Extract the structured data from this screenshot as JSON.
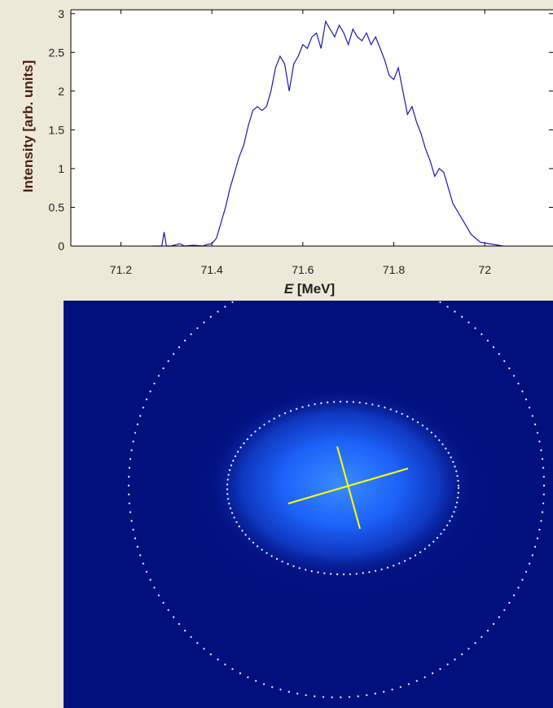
{
  "chart_data": [
    {
      "type": "line",
      "title": "",
      "xlabel_italic": "E",
      "xlabel_rest": " [MeV]",
      "ylabel": "Intensity [arb. units]",
      "xlim": [
        71.09,
        72.15
      ],
      "ylim": [
        0,
        3.05
      ],
      "xticks": [
        71.2,
        71.4,
        71.6,
        71.8,
        72
      ],
      "xtick_labels": [
        "71.2",
        "71.4",
        "71.6",
        "71.8",
        "72"
      ],
      "yticks": [
        0,
        0.5,
        1,
        1.5,
        2,
        2.5,
        3
      ],
      "ytick_labels": [
        "0",
        "0.5",
        "1",
        "1.5",
        "2",
        "2.5",
        "3"
      ],
      "grid": false,
      "line_color": "#1a1aa8",
      "series": [
        {
          "name": "",
          "x": [
            71.27,
            71.29,
            71.295,
            71.3,
            71.31,
            71.33,
            71.34,
            71.36,
            71.38,
            71.39,
            71.4,
            71.41,
            71.42,
            71.43,
            71.44,
            71.45,
            71.46,
            71.47,
            71.48,
            71.49,
            71.5,
            71.51,
            71.52,
            71.53,
            71.54,
            71.55,
            71.56,
            71.57,
            71.58,
            71.59,
            71.6,
            71.61,
            71.62,
            71.63,
            71.64,
            71.65,
            71.66,
            71.67,
            71.68,
            71.69,
            71.7,
            71.71,
            71.72,
            71.73,
            71.74,
            71.75,
            71.76,
            71.77,
            71.78,
            71.79,
            71.8,
            71.81,
            71.82,
            71.83,
            71.84,
            71.85,
            71.86,
            71.87,
            71.88,
            71.89,
            71.9,
            71.91,
            71.92,
            71.93,
            71.94,
            71.95,
            71.96,
            71.97,
            71.98,
            71.99,
            72.0,
            72.01,
            72.02,
            72.03,
            72.04
          ],
          "y": [
            0.0,
            0.0,
            0.18,
            0.0,
            0.0,
            0.03,
            0.0,
            0.01,
            0.0,
            0.02,
            0.03,
            0.1,
            0.3,
            0.5,
            0.75,
            0.95,
            1.15,
            1.3,
            1.55,
            1.75,
            1.8,
            1.75,
            1.8,
            2.0,
            2.3,
            2.45,
            2.35,
            2.0,
            2.35,
            2.45,
            2.6,
            2.55,
            2.7,
            2.75,
            2.55,
            2.9,
            2.8,
            2.7,
            2.85,
            2.75,
            2.6,
            2.8,
            2.7,
            2.65,
            2.75,
            2.6,
            2.7,
            2.55,
            2.4,
            2.2,
            2.15,
            2.3,
            2.0,
            1.7,
            1.8,
            1.6,
            1.45,
            1.25,
            1.1,
            0.9,
            1.0,
            0.95,
            0.75,
            0.55,
            0.45,
            0.35,
            0.25,
            0.15,
            0.1,
            0.05,
            0.04,
            0.03,
            0.02,
            0.01,
            0.0
          ]
        }
      ]
    },
    {
      "type": "heatmap",
      "title": "",
      "background_color": "#02107e",
      "spot_color": "#1e66ff",
      "overlay_line_color": "#ffff00",
      "overlay_dot_color": "#ffffff"
    }
  ]
}
